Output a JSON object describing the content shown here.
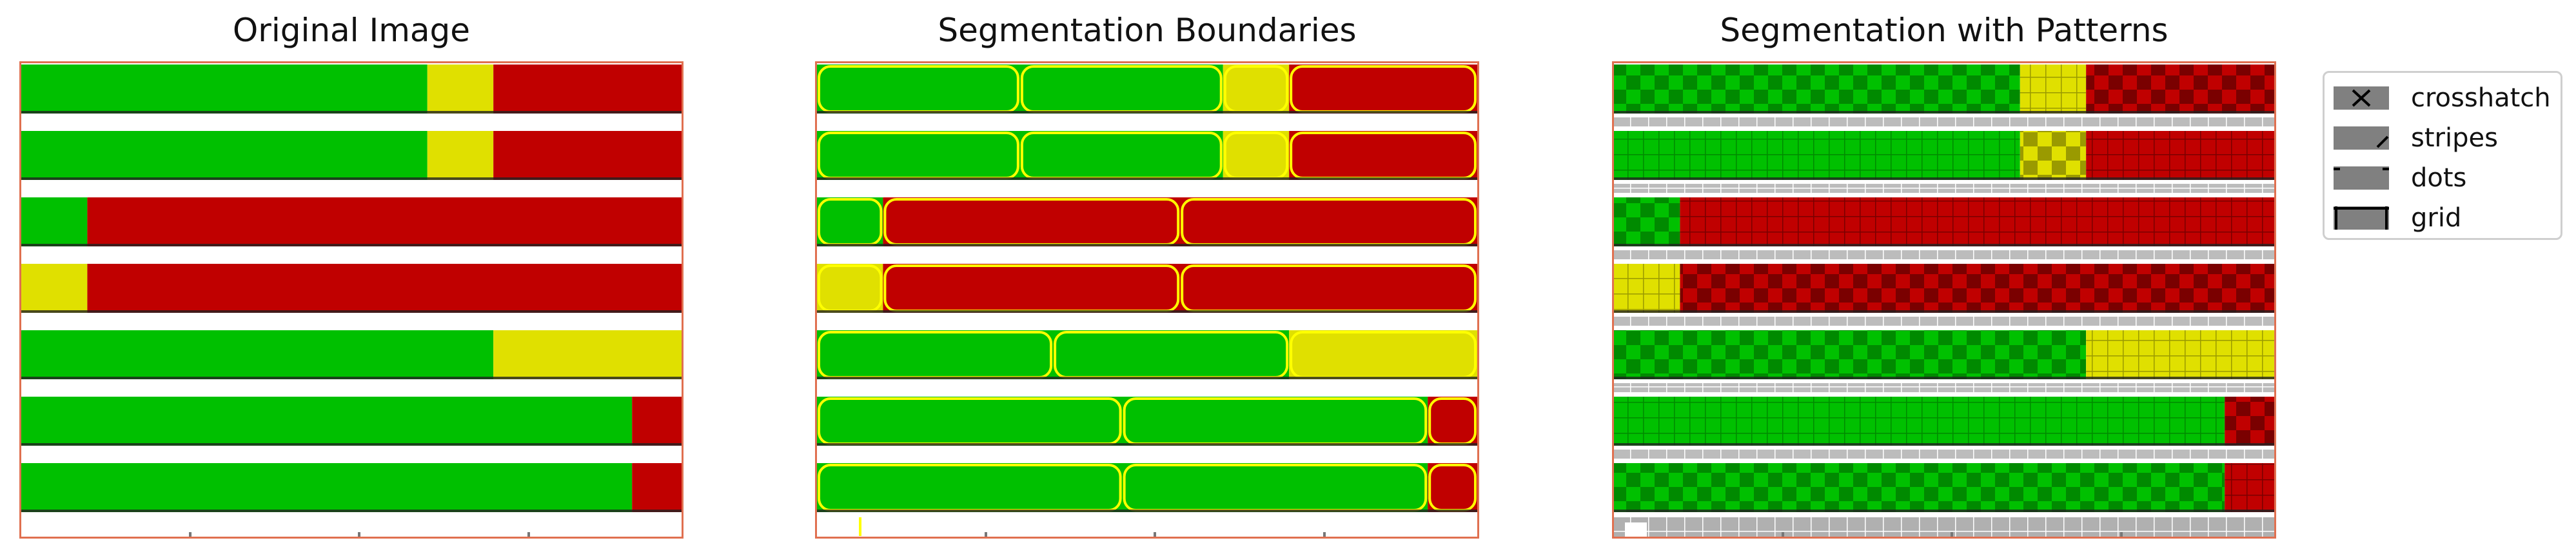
{
  "panels": [
    {
      "title": "Original Image"
    },
    {
      "title": "Segmentation Boundaries"
    },
    {
      "title": "Segmentation with Patterns"
    }
  ],
  "legend": {
    "items": [
      {
        "label": "crosshatch",
        "pattern": "crosshatch"
      },
      {
        "label": "stripes",
        "pattern": "stripes"
      },
      {
        "label": "dots",
        "pattern": "dots"
      },
      {
        "label": "grid",
        "pattern": "grid"
      }
    ]
  },
  "colors": {
    "green": "#00c000",
    "yellow": "#e0e000",
    "red": "#c00000",
    "boundary": "#ffff00",
    "frame": "#e07050",
    "gray": "#b0b0b0"
  },
  "bars": [
    [
      {
        "color": "green",
        "frac": 0.615
      },
      {
        "color": "yellow",
        "frac": 0.1
      },
      {
        "color": "red",
        "frac": 0.285
      }
    ],
    [
      {
        "color": "green",
        "frac": 0.615
      },
      {
        "color": "yellow",
        "frac": 0.1
      },
      {
        "color": "red",
        "frac": 0.285
      }
    ],
    [
      {
        "color": "green",
        "frac": 0.1
      },
      {
        "color": "red",
        "frac": 0.9
      }
    ],
    [
      {
        "color": "yellow",
        "frac": 0.1
      },
      {
        "color": "red",
        "frac": 0.9
      }
    ],
    [
      {
        "color": "green",
        "frac": 0.715
      },
      {
        "color": "yellow",
        "frac": 0.285
      }
    ],
    [
      {
        "color": "green",
        "frac": 0.925
      },
      {
        "color": "red",
        "frac": 0.075
      }
    ],
    [
      {
        "color": "green",
        "frac": 0.925
      },
      {
        "color": "red",
        "frac": 0.075
      }
    ]
  ]
}
